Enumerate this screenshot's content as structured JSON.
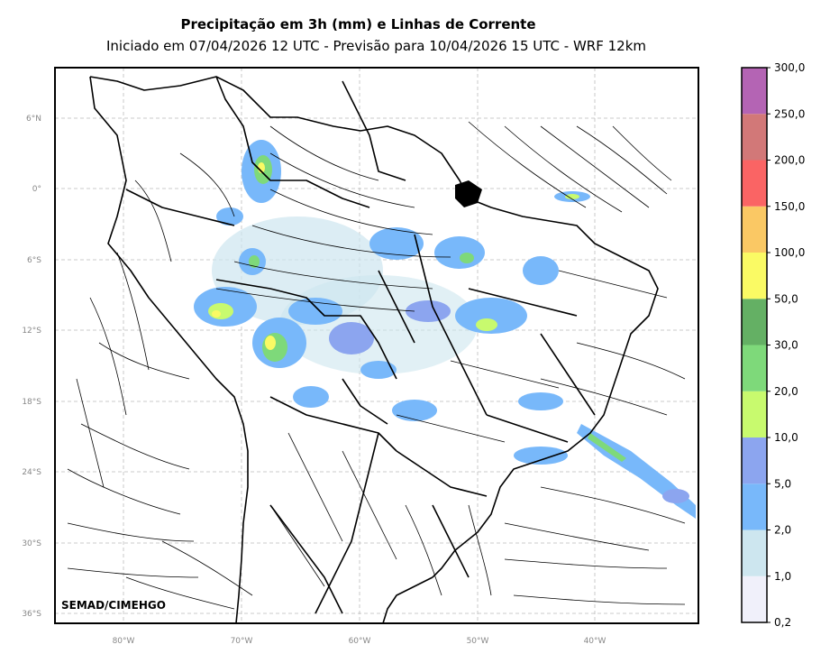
{
  "title": "Precipitação em 3h (mm) e Linhas de Corrente",
  "subtitle": "Iniciado em 07/04/2026 12 UTC - Previsão para 10/04/2026 15 UTC - WRF 12km",
  "credit": "SEMAD/CIMEHGO",
  "lat_ticks": [
    "6°N",
    "0°",
    "6°S",
    "12°S",
    "18°S",
    "24°S",
    "30°S",
    "36°S"
  ],
  "lon_ticks": [
    "80°W",
    "70°W",
    "60°W",
    "50°W",
    "40°W"
  ],
  "colorbar": {
    "labels": [
      "0,2",
      "1,0",
      "2,0",
      "5,0",
      "10,0",
      "20,0",
      "30,0",
      "50,0",
      "100,0",
      "150,0",
      "200,0",
      "250,0",
      "300,0"
    ],
    "colors": [
      "#f0f0fa",
      "#cde6ef",
      "#78b8fa",
      "#8ca5ef",
      "#c8fa6e",
      "#7ed97a",
      "#64b064",
      "#fafa64",
      "#fac864",
      "#fa6464",
      "#d27878",
      "#b464b4"
    ]
  },
  "map": {
    "lat_range": [
      "36°S",
      "10°N"
    ],
    "lon_range": [
      "86°W",
      "31°W"
    ],
    "gridlines": true
  }
}
